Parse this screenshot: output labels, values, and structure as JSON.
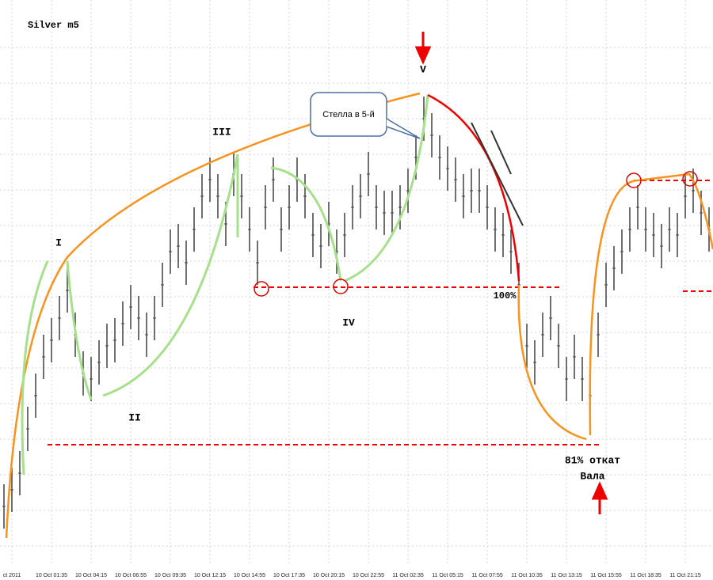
{
  "chart_data": {
    "type": "hilo",
    "title": "Silver m5",
    "categories": [
      null,
      "ct 2011",
      null,
      null,
      null,
      null,
      "10 Oct 01:35",
      null,
      null,
      null,
      null,
      "10 Oct 04:15",
      null,
      null,
      null,
      null,
      "10 Oct 06:55",
      null,
      null,
      null,
      null,
      "10 Oct 09:35",
      null,
      null,
      null,
      null,
      "10 Oct 12:15",
      null,
      null,
      null,
      null,
      "10 Oct 14:55",
      null,
      null,
      null,
      null,
      "10 Oct 17:35",
      null,
      null,
      null,
      null,
      "10 Oct 20:15",
      null,
      null,
      null,
      null,
      "10 Oct 22:55",
      null,
      null,
      null,
      null,
      "11 Oct 02:35",
      null,
      null,
      null,
      null,
      "11 Oct 05:15",
      null,
      null,
      null,
      null,
      "11 Oct 07:55",
      null,
      null,
      null,
      null,
      "11 Oct 10:35",
      null,
      null,
      null,
      null,
      "11 Oct 13:15",
      null,
      null,
      null,
      null,
      "11 Oct 15:55",
      null,
      null,
      null,
      null,
      "11 Oct 18:35",
      null,
      null,
      null,
      null,
      "11 Oct 21:15",
      null,
      null,
      null
    ],
    "series": [
      {
        "name": "high",
        "color": "#404040",
        "values": [
          14,
          17,
          20,
          28,
          34,
          41,
          44,
          48,
          53,
          45,
          38,
          37,
          40,
          43,
          44,
          47,
          50,
          48,
          45,
          48,
          54,
          60,
          61,
          58,
          64,
          70,
          73,
          70,
          65,
          74,
          70,
          64,
          58,
          68,
          73,
          64,
          68,
          73,
          70,
          63,
          61,
          65,
          60,
          63,
          68,
          70,
          74,
          68,
          67,
          67,
          68,
          71,
          77,
          84,
          81,
          77,
          75,
          73,
          70,
          71,
          71,
          68,
          64,
          63,
          60,
          54,
          43,
          40,
          45,
          48,
          43,
          37,
          41,
          37,
          34,
          45,
          54,
          57,
          60,
          64,
          68,
          64,
          63,
          61,
          64,
          63,
          70,
          71,
          67,
          64
        ]
      },
      {
        "name": "low",
        "color": "#404040",
        "values": [
          6,
          9,
          12,
          20,
          26,
          33,
          36,
          40,
          45,
          37,
          30,
          29,
          32,
          35,
          36,
          39,
          42,
          40,
          37,
          40,
          46,
          52,
          53,
          50,
          56,
          62,
          65,
          62,
          57,
          66,
          62,
          56,
          50,
          60,
          65,
          56,
          60,
          65,
          62,
          55,
          53,
          57,
          52,
          55,
          60,
          62,
          66,
          60,
          59,
          59,
          60,
          63,
          69,
          76,
          73,
          69,
          67,
          65,
          62,
          63,
          63,
          60,
          56,
          55,
          52,
          46,
          35,
          32,
          37,
          40,
          35,
          29,
          33,
          29,
          26,
          37,
          46,
          49,
          52,
          56,
          60,
          56,
          55,
          53,
          56,
          55,
          62,
          63,
          59,
          56
        ]
      }
    ],
    "ylim": [
      0,
      100
    ],
    "grid": true,
    "annotations": [
      "I",
      "II",
      "III",
      "IV",
      "V",
      "Стелла в 5-й",
      "100%",
      "81% откат",
      "Вала"
    ]
  }
}
